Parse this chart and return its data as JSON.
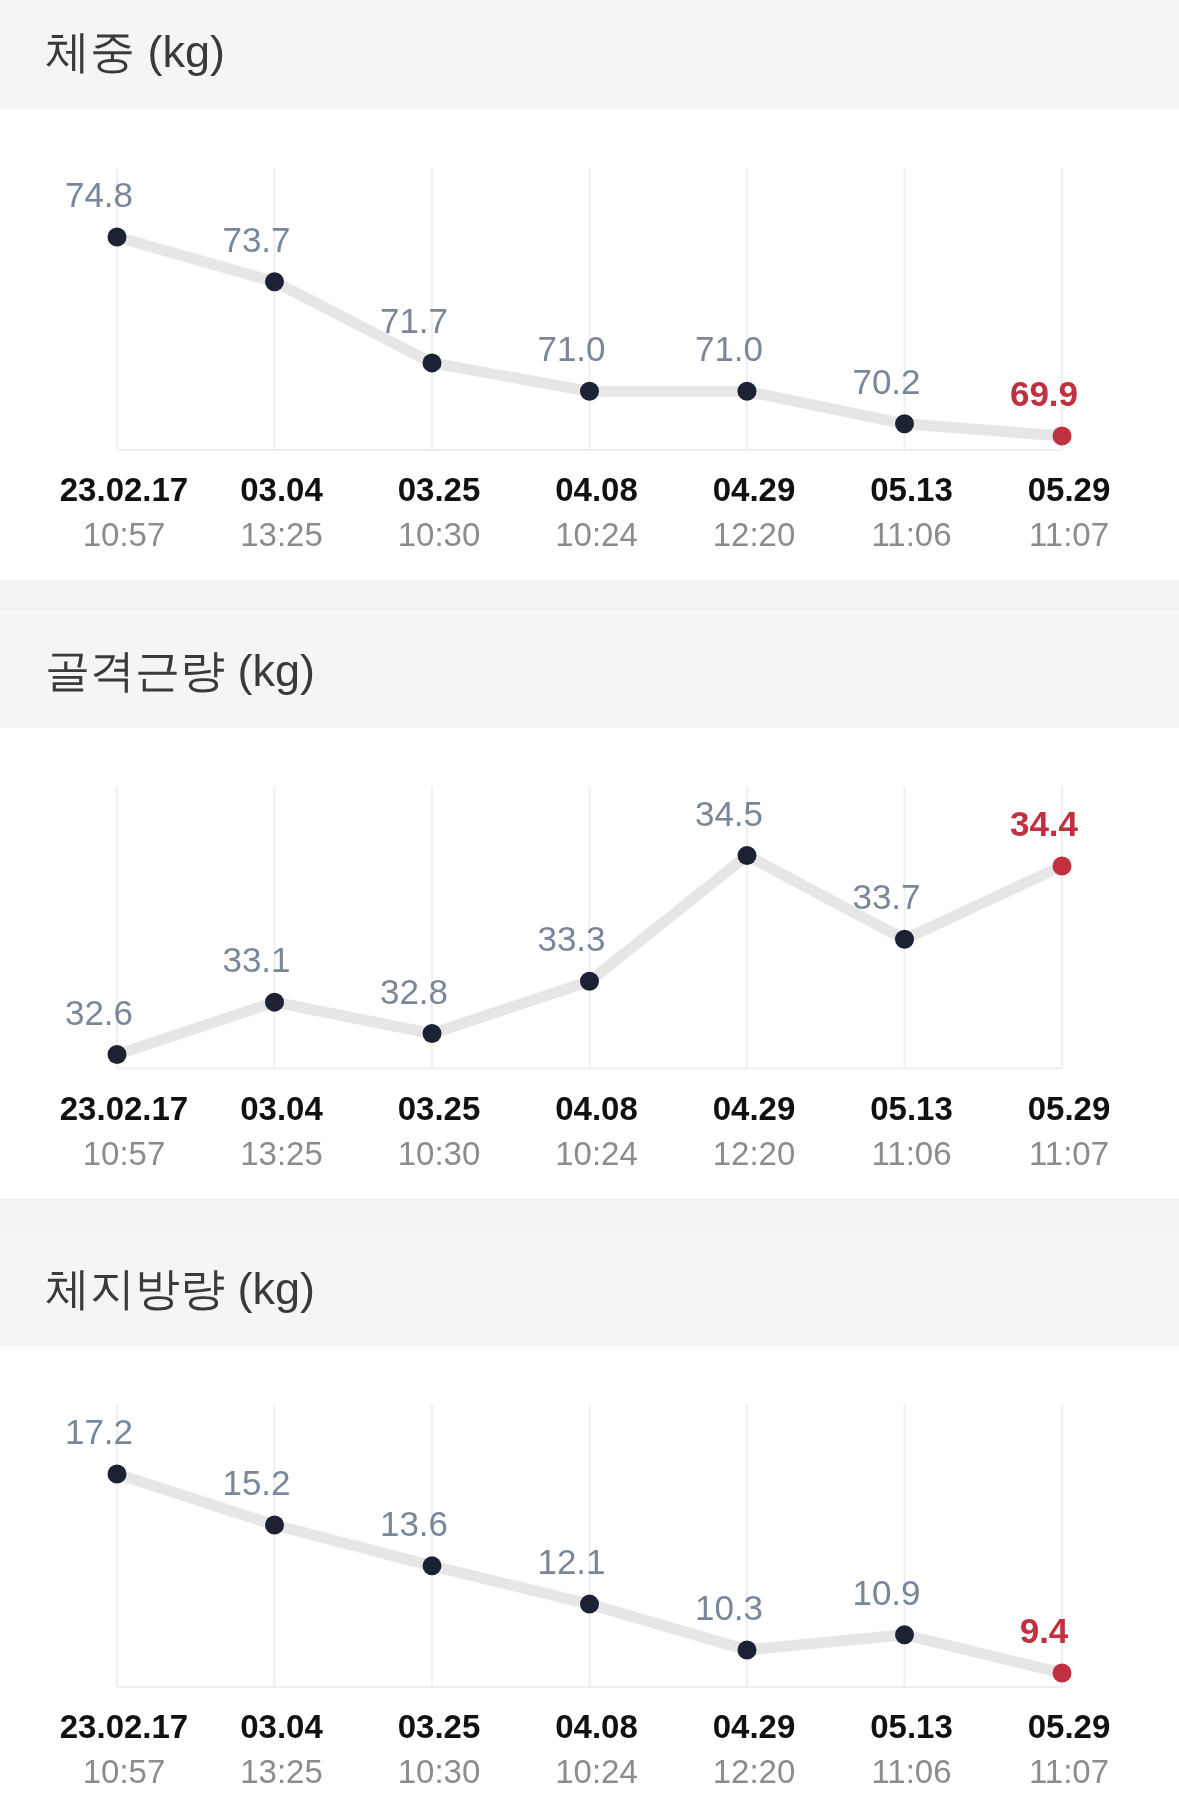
{
  "chart_data": [
    {
      "type": "line",
      "title": "체중 (kg)",
      "categories": [
        "23.02.17 10:57",
        "03.04 13:25",
        "03.25 10:30",
        "04.08 10:24",
        "04.29 12:20",
        "05.13 11:06",
        "05.29 11:07"
      ],
      "series": [
        {
          "color": "#e6e6e6",
          "colors": [
            "#1c2233",
            "#1c2233",
            "#1c2233",
            "#1c2233",
            "#1c2233",
            "#1c2233",
            "#c0303e"
          ],
          "values": [
            74.8,
            73.7,
            71.7,
            71.0,
            71.0,
            70.2,
            69.9
          ],
          "value_labels": [
            "74.8",
            "73.7",
            "71.7",
            "71.0",
            "71.0",
            "70.2",
            "69.9"
          ]
        }
      ],
      "grid": "x",
      "marker": "circle"
    },
    {
      "type": "line",
      "title": "골격근량 (kg)",
      "categories": [
        "23.02.17 10:57",
        "03.04 13:25",
        "03.25 10:30",
        "04.08 10:24",
        "04.29 12:20",
        "05.13 11:06",
        "05.29 11:07"
      ],
      "series": [
        {
          "color": "#e6e6e6",
          "colors": [
            "#1c2233",
            "#1c2233",
            "#1c2233",
            "#1c2233",
            "#1c2233",
            "#1c2233",
            "#c0303e"
          ],
          "values": [
            32.6,
            33.1,
            32.8,
            33.3,
            34.5,
            33.7,
            34.4
          ],
          "value_labels": [
            "32.6",
            "33.1",
            "32.8",
            "33.3",
            "34.5",
            "33.7",
            "34.4"
          ]
        }
      ],
      "grid": "x",
      "marker": "circle"
    },
    {
      "type": "line",
      "title": "체지방량 (kg)",
      "categories": [
        "23.02.17 10:57",
        "03.04 13:25",
        "03.25 10:30",
        "04.08 10:24",
        "04.29 12:20",
        "05.13 11:06",
        "05.29 11:07"
      ],
      "series": [
        {
          "color": "#e6e6e6",
          "colors": [
            "#1c2233",
            "#1c2233",
            "#1c2233",
            "#1c2233",
            "#1c2233",
            "#1c2233",
            "#c0303e"
          ],
          "values": [
            17.2,
            15.2,
            13.6,
            12.1,
            10.3,
            10.9,
            9.4
          ],
          "value_labels": [
            "17.2",
            "15.2",
            "13.6",
            "12.1",
            "10.3",
            "10.9",
            "9.4"
          ]
        }
      ],
      "grid": "x",
      "marker": "circle"
    }
  ]
}
